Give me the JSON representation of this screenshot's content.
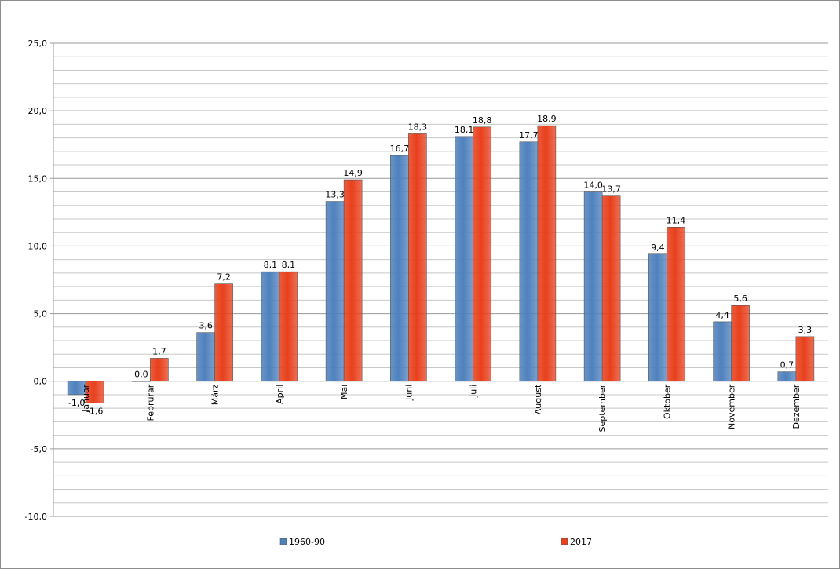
{
  "chart_data": {
    "type": "bar",
    "categories": [
      "Januar",
      "Februrar",
      "März",
      "April",
      "Mai",
      "Juni",
      "Juli",
      "August",
      "September",
      "Oktober",
      "November",
      "Dezember"
    ],
    "series": [
      {
        "name": "1960-90",
        "color": "#4f81bd",
        "values": [
          -1.0,
          0.0,
          3.6,
          8.1,
          13.3,
          16.7,
          18.1,
          17.7,
          14.0,
          9.4,
          4.4,
          0.7
        ],
        "labels": [
          "-1,0",
          "0,0",
          "3,6",
          "8,1",
          "13,3",
          "16,7",
          "18,1",
          "17,7",
          "14,0",
          "9,4",
          "4,4",
          "0,7"
        ]
      },
      {
        "name": "2017",
        "color": "#e8401c",
        "values": [
          -1.6,
          1.7,
          7.2,
          8.1,
          14.9,
          18.3,
          18.8,
          18.9,
          13.7,
          11.4,
          5.6,
          3.3
        ],
        "labels": [
          "-1,6",
          "1,7",
          "7,2",
          "8,1",
          "14,9",
          "18,3",
          "18,8",
          "18,9",
          "13,7",
          "11,4",
          "5,6",
          "3,3"
        ]
      }
    ],
    "yticks": [
      -10,
      -5,
      0,
      5,
      10,
      15,
      20,
      25
    ],
    "ytick_labels": [
      "-10,0",
      "-5,0",
      "0,0",
      "5,0",
      "10,0",
      "15,0",
      "20,0",
      "25,0"
    ],
    "ylim": [
      -10,
      25
    ],
    "minor_grid_step": 1,
    "grid": true,
    "legend_position": "bottom"
  }
}
